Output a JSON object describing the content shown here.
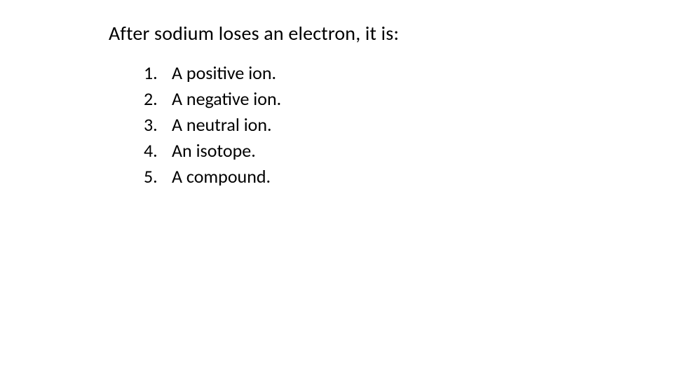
{
  "heading": "After sodium loses an electron, it is:",
  "heading_fontsize": 28,
  "item_fontsize": 26,
  "text_color": "#000000",
  "background_color": "#ffffff",
  "items": [
    {
      "num": "1.",
      "text": "A positive ion."
    },
    {
      "num": "2.",
      "text": "A negative ion."
    },
    {
      "num": "3.",
      "text": "A neutral ion."
    },
    {
      "num": "4.",
      "text": "An isotope."
    },
    {
      "num": "5.",
      "text": "A compound."
    }
  ]
}
